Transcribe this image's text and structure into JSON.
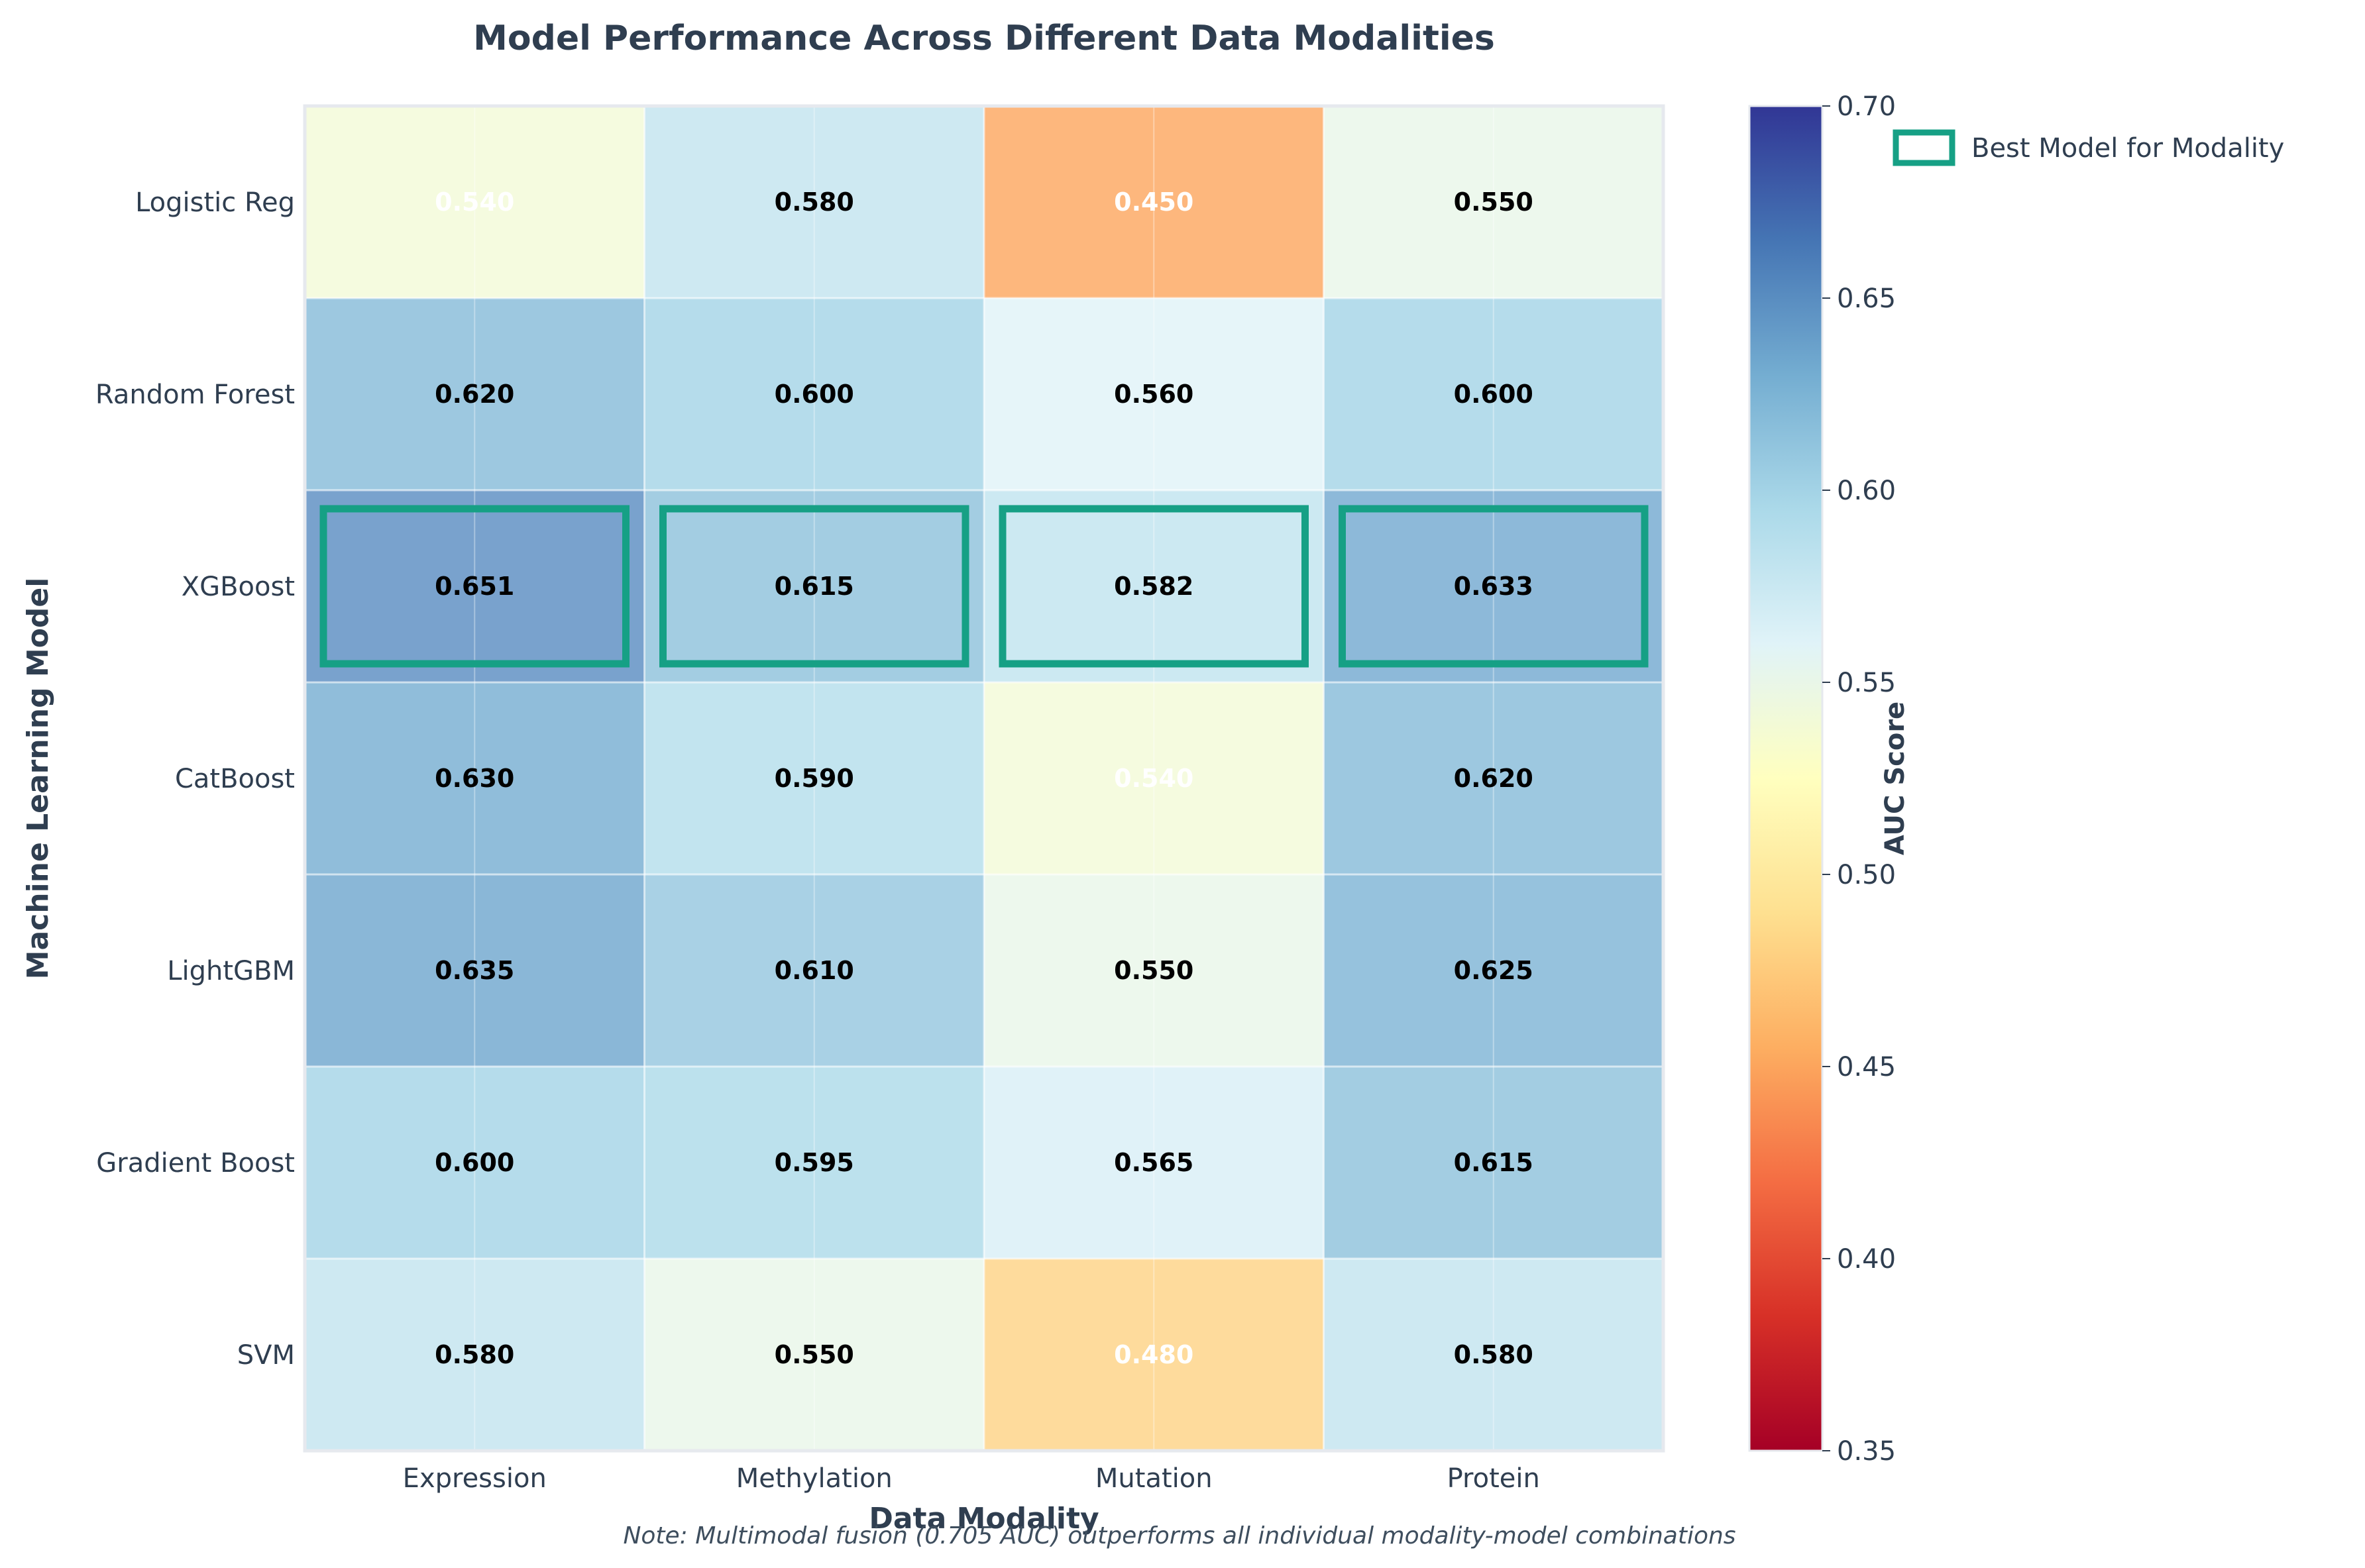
{
  "chart_data": {
    "type": "heatmap",
    "title": "Model Performance Across Different Data Modalities",
    "xlabel": "Data Modality",
    "ylabel": "Machine Learning Model",
    "x_categories": [
      "Expression",
      "Methylation",
      "Mutation",
      "Protein"
    ],
    "y_categories": [
      "Logistic Reg",
      "Random Forest",
      "XGBoost",
      "CatBoost",
      "LightGBM",
      "Gradient Boost",
      "SVM"
    ],
    "values": [
      [
        0.54,
        0.58,
        0.45,
        0.55
      ],
      [
        0.62,
        0.6,
        0.56,
        0.6
      ],
      [
        0.651,
        0.615,
        0.582,
        0.633
      ],
      [
        0.63,
        0.59,
        0.54,
        0.62
      ],
      [
        0.635,
        0.61,
        0.55,
        0.625
      ],
      [
        0.6,
        0.595,
        0.565,
        0.615
      ],
      [
        0.58,
        0.55,
        0.48,
        0.58
      ]
    ],
    "highlighted": [
      {
        "model": "XGBoost",
        "modality": "Expression"
      },
      {
        "model": "XGBoost",
        "modality": "Methylation"
      },
      {
        "model": "XGBoost",
        "modality": "Mutation"
      },
      {
        "model": "XGBoost",
        "modality": "Protein"
      }
    ],
    "colormap": "RdYlBu",
    "vmin": 0.35,
    "vmax": 0.7,
    "colorbar": {
      "label": "AUC Score",
      "ticks": [
        "0.35",
        "0.40",
        "0.45",
        "0.50",
        "0.55",
        "0.60",
        "0.65",
        "0.70"
      ]
    },
    "legend": {
      "position": "top-right",
      "entries": [
        {
          "label": "Best Model for Modality",
          "color": "#16a085"
        }
      ]
    },
    "highlight_color": "#16a085",
    "grid": true,
    "note": "Note: Multimodal fusion (0.705 AUC) outperforms all individual modality-model combinations"
  }
}
